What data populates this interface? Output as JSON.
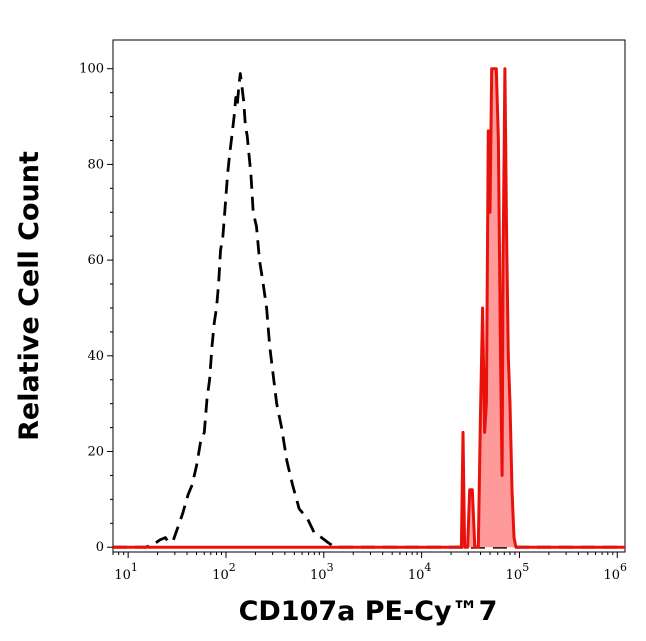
{
  "chart_data": {
    "type": "area",
    "title": "",
    "xlabel": "CD107a PE-Cy™7",
    "ylabel": "Relative Cell Count",
    "x_scale": "log",
    "xlim": [
      7,
      1200000
    ],
    "ylim": [
      -1,
      106
    ],
    "x_ticks": [
      {
        "value": 10,
        "base": "10",
        "exp": "1"
      },
      {
        "value": 100,
        "base": "10",
        "exp": "2"
      },
      {
        "value": 1000,
        "base": "10",
        "exp": "3"
      },
      {
        "value": 10000,
        "base": "10",
        "exp": "4"
      },
      {
        "value": 100000,
        "base": "10",
        "exp": "5"
      },
      {
        "value": 1000000,
        "base": "10",
        "exp": "6"
      }
    ],
    "y_ticks": [
      {
        "value": 0,
        "label": "0"
      },
      {
        "value": 20,
        "label": "20"
      },
      {
        "value": 40,
        "label": "40"
      },
      {
        "value": 60,
        "label": "60"
      },
      {
        "value": 80,
        "label": "80"
      },
      {
        "value": 100,
        "label": "100"
      }
    ],
    "series": [
      {
        "style": "dashed",
        "color": "#000000",
        "fill": "none",
        "points": [
          [
            7,
            0
          ],
          [
            15,
            0
          ],
          [
            18,
            0.5
          ],
          [
            21,
            1.5
          ],
          [
            24,
            2
          ],
          [
            26,
            1
          ],
          [
            29,
            1.5
          ],
          [
            32,
            4
          ],
          [
            36,
            7
          ],
          [
            41,
            11
          ],
          [
            45,
            13
          ],
          [
            50,
            17
          ],
          [
            55,
            22
          ],
          [
            60,
            24
          ],
          [
            64,
            31
          ],
          [
            68,
            35
          ],
          [
            72,
            42
          ],
          [
            76,
            47
          ],
          [
            80,
            50
          ],
          [
            84,
            55
          ],
          [
            88,
            62
          ],
          [
            93,
            65
          ],
          [
            98,
            71
          ],
          [
            104,
            78
          ],
          [
            109,
            82
          ],
          [
            115,
            86
          ],
          [
            121,
            90
          ],
          [
            126,
            94
          ],
          [
            130,
            92
          ],
          [
            135,
            96
          ],
          [
            140,
            99
          ],
          [
            146,
            96
          ],
          [
            152,
            93
          ],
          [
            158,
            88
          ],
          [
            165,
            86
          ],
          [
            172,
            82
          ],
          [
            180,
            78
          ],
          [
            190,
            70
          ],
          [
            205,
            67
          ],
          [
            220,
            60
          ],
          [
            240,
            55
          ],
          [
            260,
            50
          ],
          [
            280,
            42
          ],
          [
            300,
            37
          ],
          [
            330,
            30
          ],
          [
            370,
            25
          ],
          [
            420,
            18
          ],
          [
            480,
            13
          ],
          [
            560,
            8
          ],
          [
            680,
            6
          ],
          [
            800,
            3
          ],
          [
            950,
            2
          ],
          [
            1100,
            1
          ],
          [
            1300,
            0
          ],
          [
            1000000,
            0
          ]
        ]
      },
      {
        "style": "solid",
        "color": "#e8120c",
        "fill": "#ff9a9a",
        "points": [
          [
            7,
            0
          ],
          [
            25500,
            0
          ],
          [
            26500,
            24
          ],
          [
            27500,
            0
          ],
          [
            29500,
            0
          ],
          [
            31000,
            12
          ],
          [
            33000,
            12
          ],
          [
            35000,
            0
          ],
          [
            38000,
            0
          ],
          [
            40000,
            28
          ],
          [
            42000,
            50
          ],
          [
            44000,
            24
          ],
          [
            46000,
            30
          ],
          [
            48000,
            87
          ],
          [
            50000,
            70
          ],
          [
            52000,
            100
          ],
          [
            55000,
            100
          ],
          [
            58000,
            100
          ],
          [
            61000,
            85
          ],
          [
            64000,
            40
          ],
          [
            66500,
            15
          ],
          [
            68000,
            60
          ],
          [
            71000,
            100
          ],
          [
            74000,
            65
          ],
          [
            77000,
            40
          ],
          [
            80000,
            30
          ],
          [
            84000,
            12
          ],
          [
            88000,
            2
          ],
          [
            92000,
            0
          ],
          [
            1200000,
            0
          ]
        ]
      }
    ]
  }
}
